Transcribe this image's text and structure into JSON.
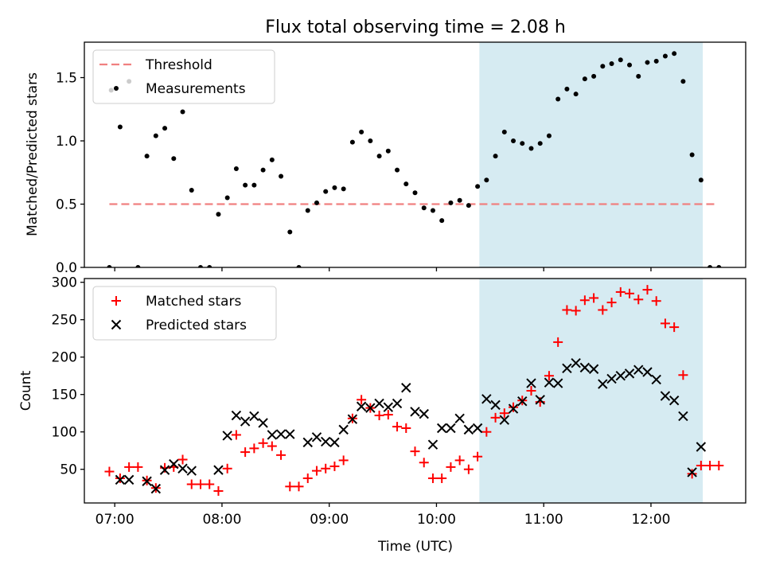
{
  "title": "Flux total observing time = 2.08 h",
  "xlabel": "Time (UTC)",
  "x_ticks": [
    "07:00",
    "08:00",
    "09:00",
    "10:00",
    "11:00",
    "12:00"
  ],
  "colors": {
    "threshold": "#f08080",
    "measurements": "#000000",
    "matched": "#ff0000",
    "predicted": "#000000",
    "highlight": "#add8e6"
  },
  "chart_data": [
    {
      "type": "scatter",
      "panel": "top",
      "ylabel": "Matched/Predicted stars",
      "xlim": [
        "06:43",
        "12:53"
      ],
      "ylim": [
        0,
        1.78
      ],
      "y_ticks": [
        "0.0",
        "0.5",
        "1.0",
        "1.5"
      ],
      "highlight_span": [
        "10:24",
        "12:29"
      ],
      "threshold": {
        "name": "Threshold",
        "value": 0.5,
        "x_range": [
          "06:57",
          "12:36"
        ]
      },
      "legend": {
        "placement": "top-left",
        "entries": [
          "Threshold",
          "Measurements"
        ]
      },
      "series": [
        {
          "name": "Measurements",
          "points": [
            [
              "06:57",
              0.0
            ],
            [
              "06:58",
              1.4
            ],
            [
              "07:03",
              1.11
            ],
            [
              "07:08",
              1.47
            ],
            [
              "07:13",
              0.0
            ],
            [
              "07:18",
              0.88
            ],
            [
              "07:23",
              1.04
            ],
            [
              "07:28",
              1.1
            ],
            [
              "07:33",
              0.86
            ],
            [
              "07:38",
              1.23
            ],
            [
              "07:43",
              0.61
            ],
            [
              "07:48",
              0.0
            ],
            [
              "07:53",
              0.0
            ],
            [
              "07:58",
              0.42
            ],
            [
              "08:03",
              0.55
            ],
            [
              "08:08",
              0.78
            ],
            [
              "08:13",
              0.65
            ],
            [
              "08:18",
              0.65
            ],
            [
              "08:23",
              0.77
            ],
            [
              "08:28",
              0.85
            ],
            [
              "08:33",
              0.72
            ],
            [
              "08:38",
              0.28
            ],
            [
              "08:43",
              0.0
            ],
            [
              "08:48",
              0.45
            ],
            [
              "08:53",
              0.51
            ],
            [
              "08:58",
              0.6
            ],
            [
              "09:03",
              0.63
            ],
            [
              "09:08",
              0.62
            ],
            [
              "09:13",
              0.99
            ],
            [
              "09:18",
              1.07
            ],
            [
              "09:23",
              1.0
            ],
            [
              "09:28",
              0.88
            ],
            [
              "09:33",
              0.92
            ],
            [
              "09:38",
              0.77
            ],
            [
              "09:43",
              0.66
            ],
            [
              "09:48",
              0.59
            ],
            [
              "09:53",
              0.47
            ],
            [
              "09:58",
              0.45
            ],
            [
              "10:03",
              0.37
            ],
            [
              "10:08",
              0.51
            ],
            [
              "10:13",
              0.53
            ],
            [
              "10:18",
              0.49
            ],
            [
              "10:23",
              0.64
            ],
            [
              "10:28",
              0.69
            ],
            [
              "10:33",
              0.88
            ],
            [
              "10:38",
              1.07
            ],
            [
              "10:43",
              1.0
            ],
            [
              "10:48",
              0.98
            ],
            [
              "10:53",
              0.94
            ],
            [
              "10:58",
              0.98
            ],
            [
              "11:03",
              1.04
            ],
            [
              "11:08",
              1.33
            ],
            [
              "11:13",
              1.41
            ],
            [
              "11:18",
              1.37
            ],
            [
              "11:23",
              1.49
            ],
            [
              "11:28",
              1.51
            ],
            [
              "11:33",
              1.59
            ],
            [
              "11:38",
              1.61
            ],
            [
              "11:43",
              1.64
            ],
            [
              "11:48",
              1.6
            ],
            [
              "11:53",
              1.51
            ],
            [
              "11:58",
              1.62
            ],
            [
              "12:03",
              1.63
            ],
            [
              "12:08",
              1.67
            ],
            [
              "12:13",
              1.69
            ],
            [
              "12:18",
              1.47
            ],
            [
              "12:23",
              0.89
            ],
            [
              "12:28",
              0.69
            ],
            [
              "12:33",
              0.0
            ],
            [
              "12:38",
              0.0
            ]
          ]
        }
      ]
    },
    {
      "type": "scatter",
      "panel": "bottom",
      "ylabel": "Count",
      "xlim": [
        "06:43",
        "12:53"
      ],
      "ylim": [
        5,
        305
      ],
      "y_ticks": [
        "50",
        "100",
        "150",
        "200",
        "250",
        "300"
      ],
      "highlight_span": [
        "10:24",
        "12:29"
      ],
      "legend": {
        "placement": "top-left",
        "entries": [
          "Matched stars",
          "Predicted stars"
        ]
      },
      "series": [
        {
          "name": "Matched stars",
          "points": [
            [
              "06:57",
              47
            ],
            [
              "07:03",
              38
            ],
            [
              "07:08",
              53
            ],
            [
              "07:13",
              53
            ],
            [
              "07:18",
              35
            ],
            [
              "07:23",
              25
            ],
            [
              "07:28",
              52
            ],
            [
              "07:33",
              53
            ],
            [
              "07:38",
              63
            ],
            [
              "07:43",
              30
            ],
            [
              "07:48",
              30
            ],
            [
              "07:53",
              30
            ],
            [
              "07:58",
              21
            ],
            [
              "08:03",
              51
            ],
            [
              "08:08",
              96
            ],
            [
              "08:13",
              73
            ],
            [
              "08:18",
              78
            ],
            [
              "08:23",
              85
            ],
            [
              "08:28",
              81
            ],
            [
              "08:33",
              69
            ],
            [
              "08:38",
              27
            ],
            [
              "08:43",
              27
            ],
            [
              "08:48",
              38
            ],
            [
              "08:53",
              48
            ],
            [
              "08:58",
              51
            ],
            [
              "09:03",
              54
            ],
            [
              "09:08",
              62
            ],
            [
              "09:13",
              118
            ],
            [
              "09:18",
              143
            ],
            [
              "09:23",
              132
            ],
            [
              "09:28",
              122
            ],
            [
              "09:33",
              123
            ],
            [
              "09:38",
              107
            ],
            [
              "09:43",
              105
            ],
            [
              "09:48",
              74
            ],
            [
              "09:53",
              59
            ],
            [
              "09:58",
              38
            ],
            [
              "10:03",
              38
            ],
            [
              "10:08",
              53
            ],
            [
              "10:13",
              62
            ],
            [
              "10:18",
              50
            ],
            [
              "10:23",
              67
            ],
            [
              "10:28",
              100
            ],
            [
              "10:33",
              119
            ],
            [
              "10:38",
              125
            ],
            [
              "10:43",
              133
            ],
            [
              "10:48",
              142
            ],
            [
              "10:53",
              155
            ],
            [
              "10:58",
              140
            ],
            [
              "11:03",
              175
            ],
            [
              "11:08",
              220
            ],
            [
              "11:13",
              263
            ],
            [
              "11:18",
              262
            ],
            [
              "11:23",
              276
            ],
            [
              "11:28",
              279
            ],
            [
              "11:33",
              263
            ],
            [
              "11:38",
              273
            ],
            [
              "11:43",
              287
            ],
            [
              "11:48",
              285
            ],
            [
              "11:53",
              277
            ],
            [
              "11:58",
              290
            ],
            [
              "12:03",
              275
            ],
            [
              "12:08",
              245
            ],
            [
              "12:13",
              240
            ],
            [
              "12:18",
              176
            ],
            [
              "12:23",
              44
            ],
            [
              "12:28",
              55
            ],
            [
              "12:33",
              55
            ],
            [
              "12:38",
              55
            ]
          ]
        },
        {
          "name": "Predicted stars",
          "points": [
            [
              "07:03",
              36
            ],
            [
              "07:08",
              36
            ],
            [
              "07:18",
              34
            ],
            [
              "07:23",
              24
            ],
            [
              "07:28",
              49
            ],
            [
              "07:33",
              57
            ],
            [
              "07:38",
              51
            ],
            [
              "07:43",
              48
            ],
            [
              "07:58",
              49
            ],
            [
              "08:03",
              95
            ],
            [
              "08:08",
              122
            ],
            [
              "08:13",
              114
            ],
            [
              "08:18",
              121
            ],
            [
              "08:23",
              112
            ],
            [
              "08:28",
              96
            ],
            [
              "08:33",
              97
            ],
            [
              "08:38",
              97
            ],
            [
              "08:48",
              86
            ],
            [
              "08:53",
              93
            ],
            [
              "08:58",
              87
            ],
            [
              "09:03",
              86
            ],
            [
              "09:08",
              103
            ],
            [
              "09:13",
              117
            ],
            [
              "09:18",
              134
            ],
            [
              "09:23",
              132
            ],
            [
              "09:28",
              138
            ],
            [
              "09:33",
              133
            ],
            [
              "09:38",
              138
            ],
            [
              "09:43",
              159
            ],
            [
              "09:48",
              127
            ],
            [
              "09:53",
              124
            ],
            [
              "09:58",
              83
            ],
            [
              "10:03",
              105
            ],
            [
              "10:08",
              105
            ],
            [
              "10:13",
              118
            ],
            [
              "10:18",
              103
            ],
            [
              "10:23",
              105
            ],
            [
              "10:28",
              144
            ],
            [
              "10:33",
              136
            ],
            [
              "10:38",
              116
            ],
            [
              "10:43",
              131
            ],
            [
              "10:48",
              141
            ],
            [
              "10:53",
              165
            ],
            [
              "10:58",
              143
            ],
            [
              "11:03",
              166
            ],
            [
              "11:08",
              165
            ],
            [
              "11:13",
              185
            ],
            [
              "11:18",
              192
            ],
            [
              "11:23",
              186
            ],
            [
              "11:28",
              184
            ],
            [
              "11:33",
              164
            ],
            [
              "11:38",
              171
            ],
            [
              "11:43",
              175
            ],
            [
              "11:48",
              178
            ],
            [
              "11:53",
              183
            ],
            [
              "11:58",
              180
            ],
            [
              "12:03",
              170
            ],
            [
              "12:08",
              148
            ],
            [
              "12:13",
              142
            ],
            [
              "12:18",
              121
            ],
            [
              "12:23",
              46
            ],
            [
              "12:28",
              80
            ]
          ]
        }
      ]
    }
  ]
}
